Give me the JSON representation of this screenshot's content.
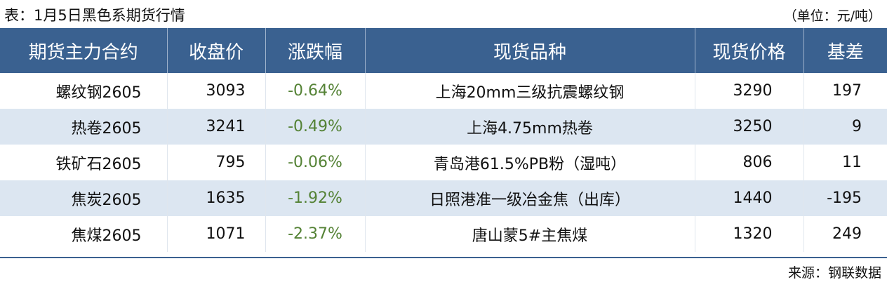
{
  "title": "表：1月5日黑色系期货行情",
  "unit": "（单位：元/吨）",
  "source": "来源：钢联数据",
  "colors": {
    "header_bg": "#3a6190",
    "alt_row": "#dce6f1",
    "change_negative": "#548235"
  },
  "table": {
    "headers": [
      "期货主力合约",
      "收盘价",
      "涨跌幅",
      "现货品种",
      "现货价格",
      "基差"
    ],
    "rows": [
      [
        "螺纹钢2605",
        "3093",
        "-0.64%",
        "上海20mm三级抗震螺纹钢",
        "3290",
        "197"
      ],
      [
        "热卷2605",
        "3241",
        "-0.49%",
        "上海4.75mm热卷",
        "3250",
        "9"
      ],
      [
        "铁矿石2605",
        "795",
        "-0.06%",
        "青岛港61.5%PB粉（湿吨）",
        "806",
        "11"
      ],
      [
        "焦炭2605",
        "1635",
        "-1.92%",
        "日照港准一级冶金焦（出库）",
        "1440",
        "-195"
      ],
      [
        "焦煤2605",
        "1071",
        "-2.37%",
        "唐山蒙5#主焦煤",
        "1320",
        "249"
      ]
    ]
  }
}
